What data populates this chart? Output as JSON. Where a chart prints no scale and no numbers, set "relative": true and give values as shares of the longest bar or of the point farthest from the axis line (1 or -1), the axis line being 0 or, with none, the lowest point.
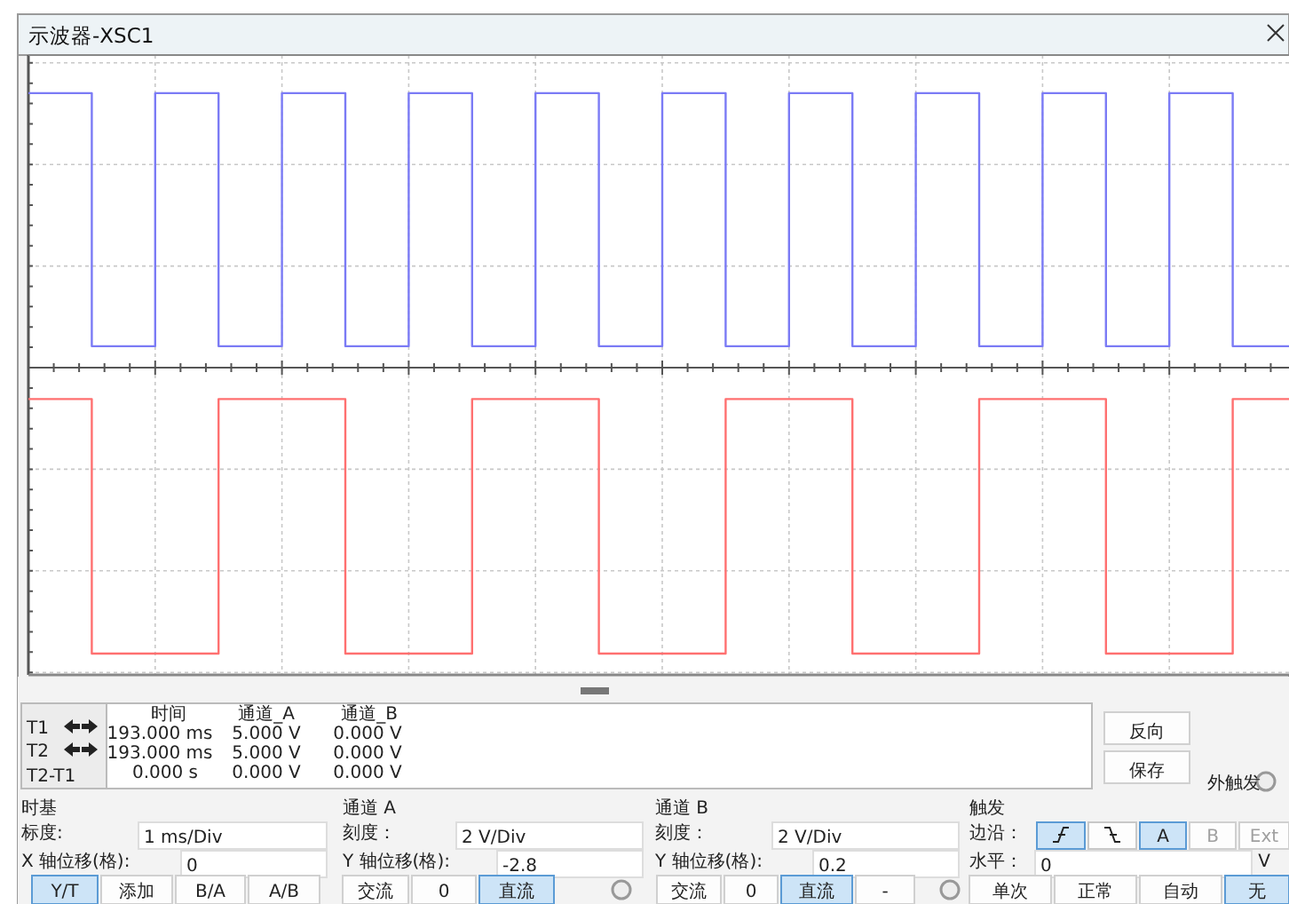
{
  "chart_data": {
    "type": "step",
    "title": "示波器-XSC1",
    "relative": true,
    "grid": true,
    "categories": [
      null,
      null,
      null,
      null,
      null,
      null,
      null,
      null,
      null,
      null,
      null,
      null,
      null,
      null,
      null,
      null,
      null,
      null,
      null,
      null,
      null
    ],
    "series": [
      {
        "color": "#7b7bf5",
        "values": [
          0.96,
          0.075,
          0.96,
          0.075,
          0.96,
          0.075,
          0.96,
          0.075,
          0.96,
          0.075,
          0.96,
          0.075,
          0.96,
          0.075,
          0.96,
          0.075,
          0.96,
          0.075,
          0.96,
          0.075,
          0.96
        ]
      },
      {
        "color": "#ff7070",
        "values": [
          -0.11,
          -1,
          -1,
          -0.11,
          -0.11,
          -1,
          -1,
          -0.11,
          -0.11,
          -1,
          -1,
          -0.11,
          -0.11,
          -1,
          -1,
          -0.11,
          -0.11,
          -1,
          -1,
          -0.11,
          -0.11
        ]
      }
    ],
    "annotations": [
      "时间",
      "通道_A",
      "通道_B",
      "T1",
      "T2",
      "T2-T1",
      "193.000 ms",
      "5.000 V",
      "0.000 V",
      "193.000 ms",
      "5.000 V",
      "0.000 V",
      "0.000 s",
      "0.000 V",
      "0.000 V",
      "反向",
      "保存",
      "外触发",
      "时基",
      "标度:",
      "1 ms/Div",
      "X 轴位移(格):",
      "0",
      "Y/T",
      "添加",
      "B/A",
      "A/B",
      "通道 A",
      "刻度：",
      "2 V/Div",
      "Y 轴位移(格):",
      "-2.8",
      "交流",
      "0",
      "直流",
      "通道 B",
      "刻度：",
      "2 V/Div",
      "Y 轴位移(格):",
      "0.2",
      "交流",
      "0",
      "直流",
      "-",
      "触发",
      "边沿：",
      "A",
      "B",
      "Ext",
      "水平：",
      "0",
      "V",
      "单次",
      "正常",
      "自动",
      "无"
    ]
  }
}
